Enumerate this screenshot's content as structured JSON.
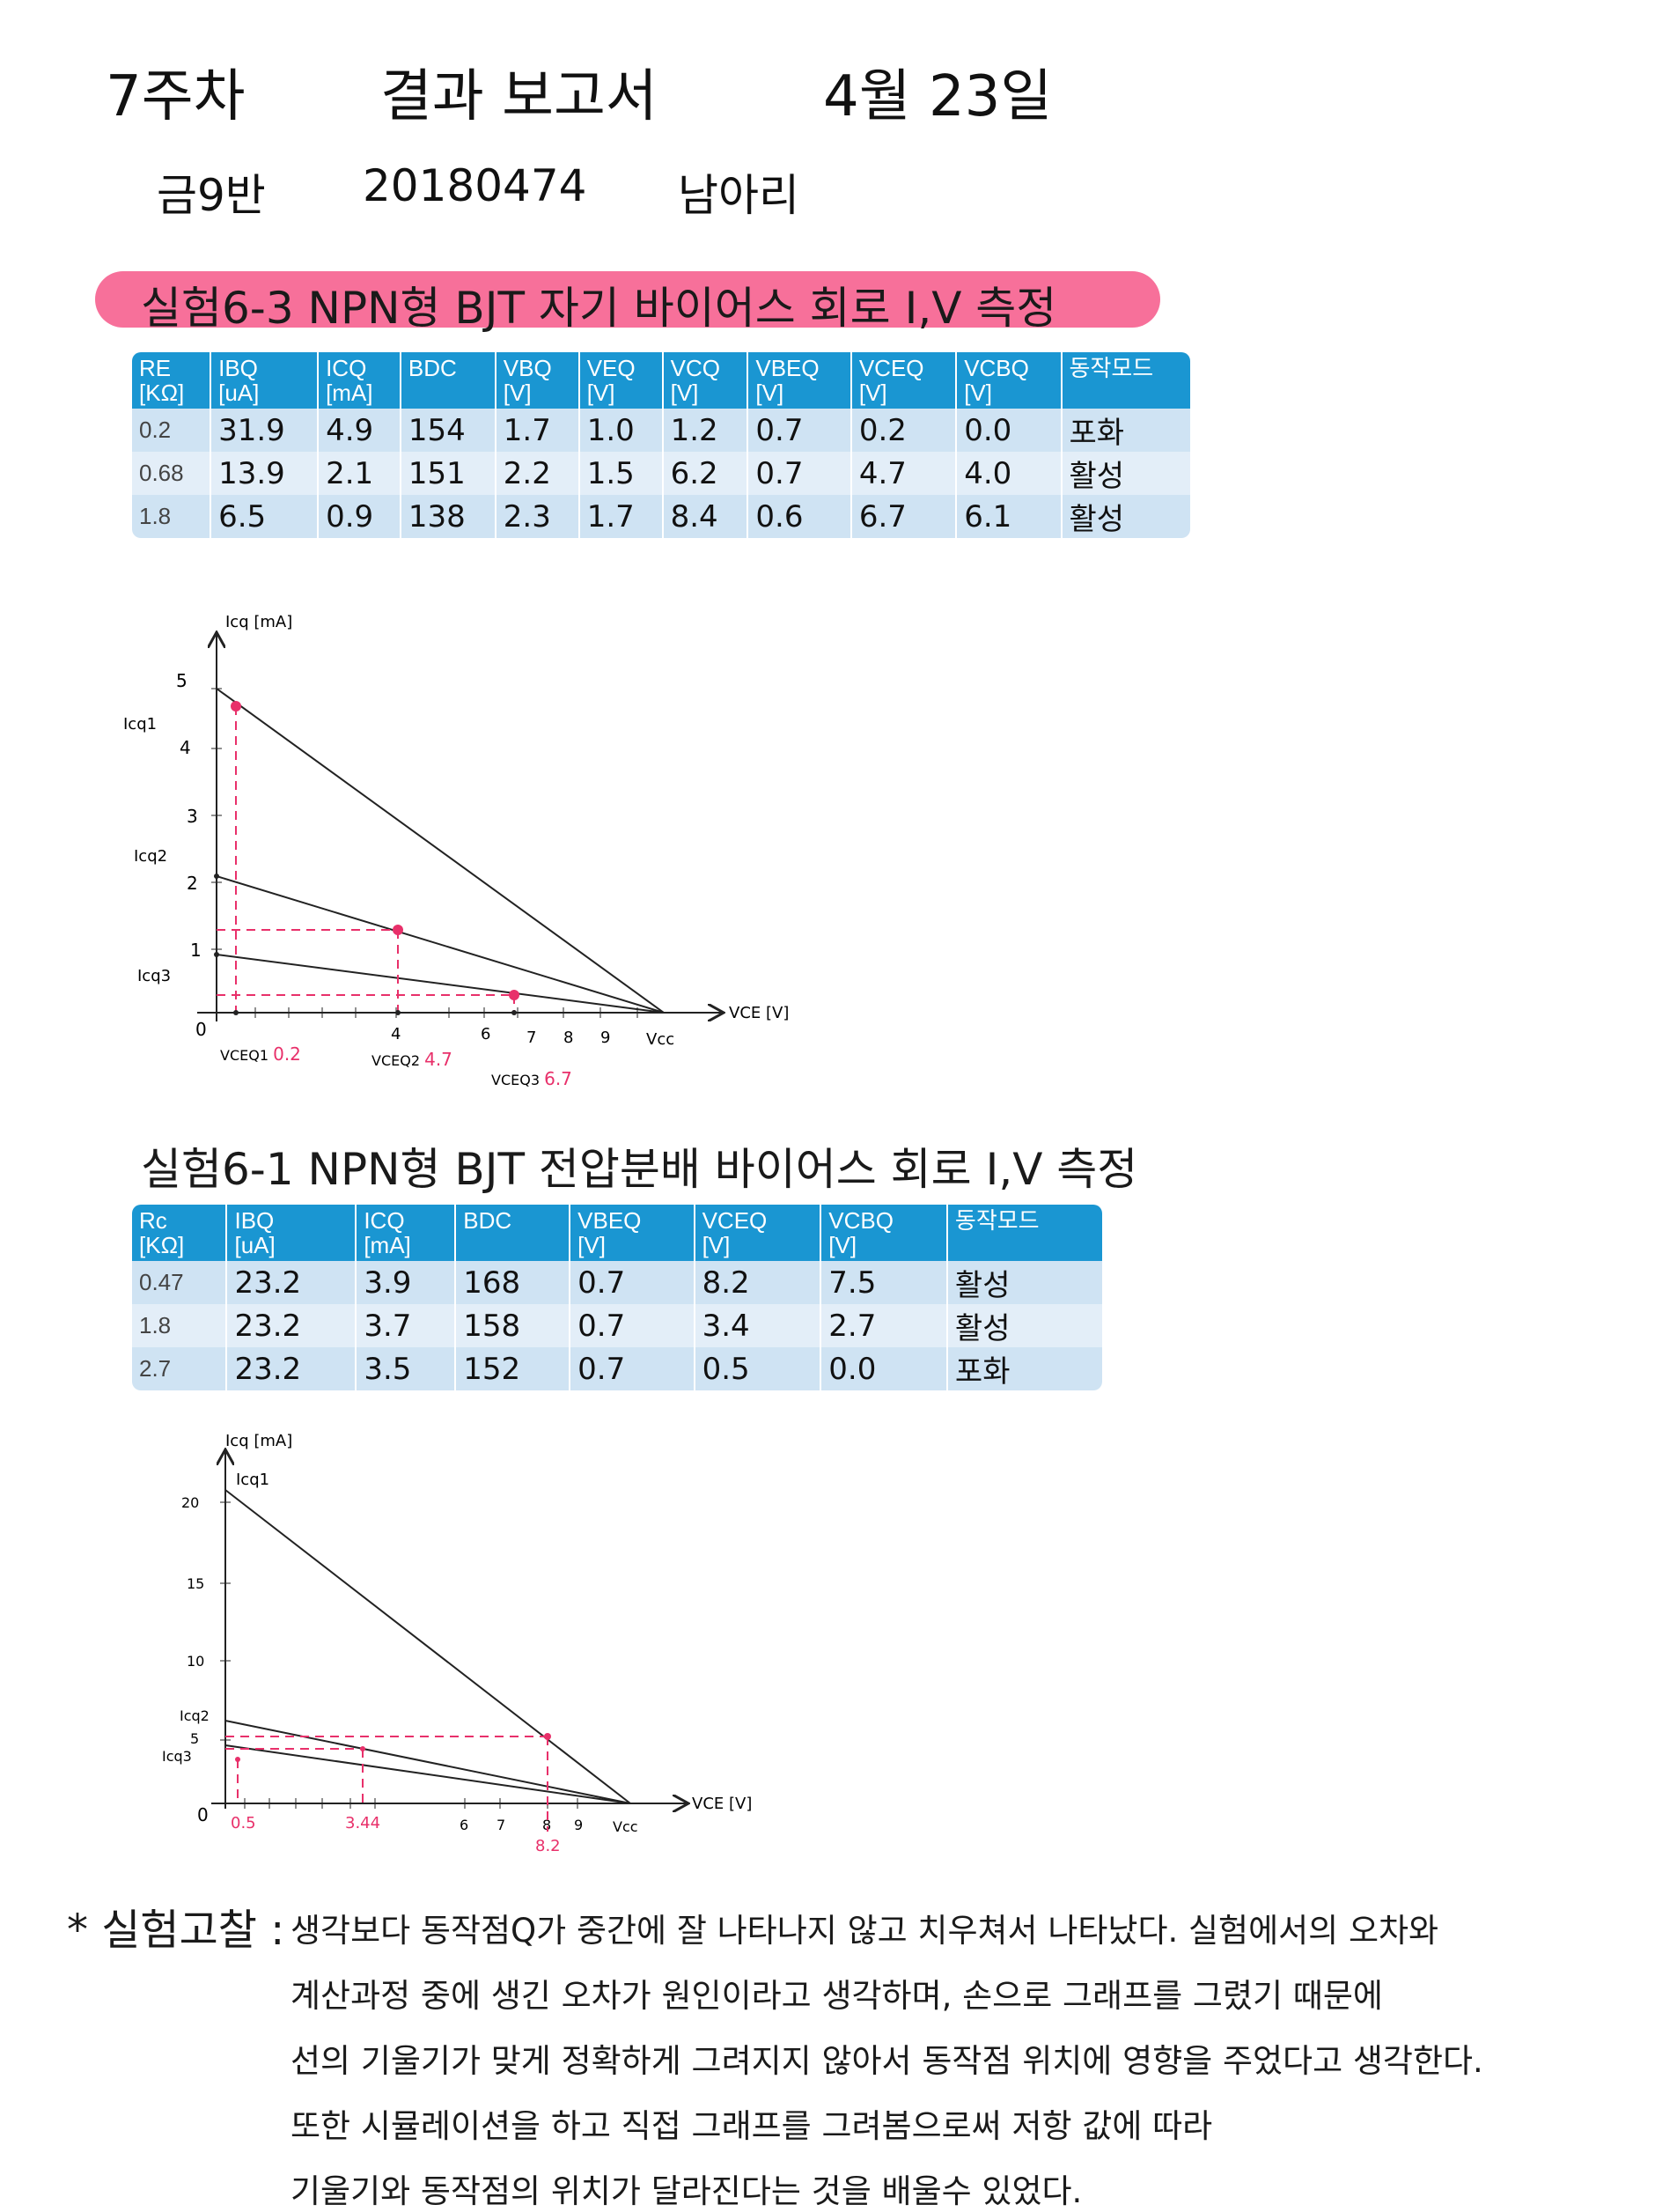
{
  "header": {
    "line1_left": "7주차",
    "line1_mid": "결과 보고서",
    "line1_right": "4월 23일",
    "class": "금9반",
    "student_id": "20180474",
    "name": "남아리"
  },
  "section1": {
    "title": "실험6-3 NPN형 BJT 자기 바이어스 회로 I,V 측정",
    "columns": [
      "RE\n[KΩ]",
      "IBQ\n[uA]",
      "ICQ\n[mA]",
      "BDC",
      "VBQ\n[V]",
      "VEQ\n[V]",
      "VCQ\n[V]",
      "VBEQ\n[V]",
      "VCEQ\n[V]",
      "VCBQ\n[V]",
      "동작모드"
    ],
    "rows": [
      [
        "0.2",
        "31.9",
        "4.9",
        "154",
        "1.7",
        "1.0",
        "1.2",
        "0.7",
        "0.2",
        "0.0",
        "포화"
      ],
      [
        "0.68",
        "13.9",
        "2.1",
        "151",
        "2.2",
        "1.5",
        "6.2",
        "0.7",
        "4.7",
        "4.0",
        "활성"
      ],
      [
        "1.8",
        "6.5",
        "0.9",
        "138",
        "2.3",
        "1.7",
        "8.4",
        "0.6",
        "6.7",
        "6.1",
        "활성"
      ]
    ]
  },
  "graph1": {
    "y_title": "Icq [mA]",
    "x_title": "VCE [V]",
    "y_ticks": [
      "5",
      "4",
      "3",
      "2",
      "1",
      "0"
    ],
    "x_ticks": [
      "4",
      "6",
      "7",
      "8",
      "9",
      "Vcc"
    ],
    "labels": [
      "Icq1",
      "Icq2",
      "Icq3"
    ],
    "vce_labels": [
      "VCEQ1",
      "VCEQ2",
      "VCEQ3"
    ],
    "vce_values": [
      "0.2",
      "4.7",
      "6.7"
    ]
  },
  "section2": {
    "title": "실험6-1 NPN형 BJT 전압분배 바이어스 회로 I,V 측정",
    "columns": [
      "Rc\n[KΩ]",
      "IBQ\n[uA]",
      "ICQ\n[mA]",
      "BDC",
      "VBEQ\n[V]",
      "VCEQ\n[V]",
      "VCBQ\n[V]",
      "동작모드"
    ],
    "rows": [
      [
        "0.47",
        "23.2",
        "3.9",
        "168",
        "0.7",
        "8.2",
        "7.5",
        "활성"
      ],
      [
        "1.8",
        "23.2",
        "3.7",
        "158",
        "0.7",
        "3.4",
        "2.7",
        "활성"
      ],
      [
        "2.7",
        "23.2",
        "3.5",
        "152",
        "0.7",
        "0.5",
        "0.0",
        "포화"
      ]
    ]
  },
  "graph2": {
    "y_title": "Icq [mA]",
    "x_title": "VCE [V]",
    "y_ticks": [
      "20",
      "15",
      "10",
      "5",
      "0"
    ],
    "x_ticks": [
      "6",
      "7",
      "8",
      "9",
      "Vcc"
    ],
    "labels": [
      "Icq1",
      "Icq2",
      "Icq3"
    ],
    "pink_values": [
      "0.5",
      "3.44",
      "8.2"
    ]
  },
  "conclusion": {
    "label": "* 실험고찰 :",
    "lines": [
      "생각보다 동작점Q가 중간에 잘 나타나지 않고 치우쳐서 나타났다. 실험에서의 오차와",
      "계산과정 중에 생긴 오차가 원인이라고 생각하며, 손으로 그래프를 그렸기 때문에",
      "선의 기울기가 맞게 정확하게 그려지지 않아서 동작점 위치에 영향을 주었다고 생각한다.",
      "또한 시뮬레이션을 하고 직접 그래프를 그려봄으로써 저항 값에 따라",
      "기울기와 동작점의 위치가 달라진다는 것을 배울수 있었다."
    ]
  },
  "colors": {
    "table_header": "#1a96d2",
    "highlight": "#f7709a",
    "pink_marks": "#e8306a"
  }
}
